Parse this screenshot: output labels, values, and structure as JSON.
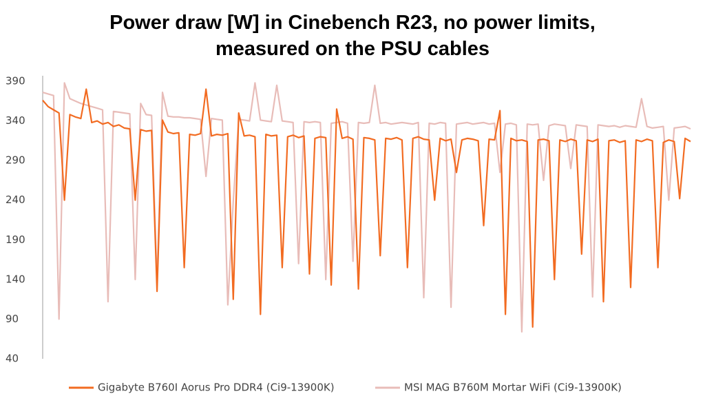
{
  "chart_data": {
    "type": "line",
    "title": "Power draw [W] in Cinebench R23, no power limits, measured on the PSU cables",
    "ylim": [
      40,
      390
    ],
    "yticks": [
      40,
      90,
      140,
      190,
      240,
      290,
      340,
      390
    ],
    "grid": false,
    "legend": "bottom",
    "series": [
      {
        "name": "Gigabyte B760I Aorus Pro DDR4 (Ci9-13900K)",
        "color": "#f26b21",
        "values": [
          366,
          358,
          354,
          350,
          240,
          348,
          345,
          343,
          380,
          338,
          340,
          336,
          338,
          333,
          335,
          331,
          330,
          240,
          329,
          327,
          328,
          125,
          341,
          326,
          324,
          325,
          155,
          323,
          322,
          324,
          380,
          321,
          323,
          322,
          324,
          115,
          350,
          321,
          322,
          320,
          96,
          323,
          321,
          322,
          155,
          320,
          322,
          319,
          321,
          147,
          318,
          320,
          319,
          133,
          355,
          318,
          320,
          317,
          128,
          319,
          318,
          316,
          170,
          318,
          317,
          319,
          316,
          155,
          318,
          320,
          317,
          316,
          240,
          318,
          315,
          317,
          275,
          316,
          318,
          317,
          315,
          208,
          317,
          316,
          353,
          96,
          318,
          315,
          316,
          314,
          80,
          316,
          317,
          315,
          140,
          316,
          314,
          317,
          315,
          172,
          316,
          314,
          317,
          112,
          315,
          316,
          313,
          315,
          130,
          316,
          314,
          317,
          315,
          155,
          313,
          316,
          314,
          242,
          318,
          314
        ]
      },
      {
        "name": "MSI MAG B760M Mortar WiFi (Ci9-13900K)",
        "color": "#e8bcb8",
        "values": [
          376,
          374,
          372,
          90,
          388,
          368,
          365,
          362,
          360,
          358,
          356,
          354,
          112,
          352,
          351,
          350,
          349,
          140,
          362,
          348,
          347,
          135,
          376,
          346,
          345,
          345,
          344,
          344,
          343,
          342,
          270,
          343,
          342,
          341,
          108,
          238,
          342,
          341,
          340,
          388,
          341,
          340,
          339,
          385,
          340,
          339,
          338,
          160,
          339,
          338,
          339,
          338,
          140,
          337,
          338,
          339,
          337,
          163,
          338,
          337,
          338,
          385,
          337,
          338,
          336,
          337,
          338,
          337,
          336,
          338,
          117,
          337,
          336,
          338,
          337,
          105,
          336,
          337,
          338,
          336,
          337,
          338,
          336,
          337,
          275,
          336,
          337,
          335,
          74,
          336,
          335,
          336,
          265,
          334,
          336,
          335,
          334,
          280,
          335,
          334,
          333,
          118,
          335,
          334,
          333,
          334,
          332,
          334,
          333,
          332,
          368,
          333,
          331,
          332,
          333,
          240,
          331,
          332,
          333,
          330
        ]
      }
    ]
  }
}
